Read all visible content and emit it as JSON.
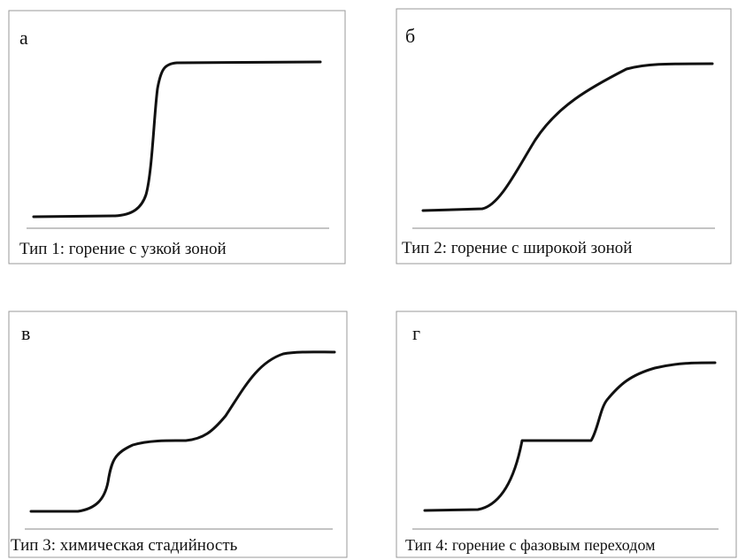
{
  "panels": [
    {
      "letter": "а",
      "caption": "Тип 1: горение с узкой зоной"
    },
    {
      "letter": "б",
      "caption": "Тип 2: горение с широкой  зоной"
    },
    {
      "letter": "в",
      "caption": "Тип 3: химическая стадийность"
    },
    {
      "letter": "г",
      "caption": "Тип 4: горение с фазовым переходом"
    }
  ]
}
